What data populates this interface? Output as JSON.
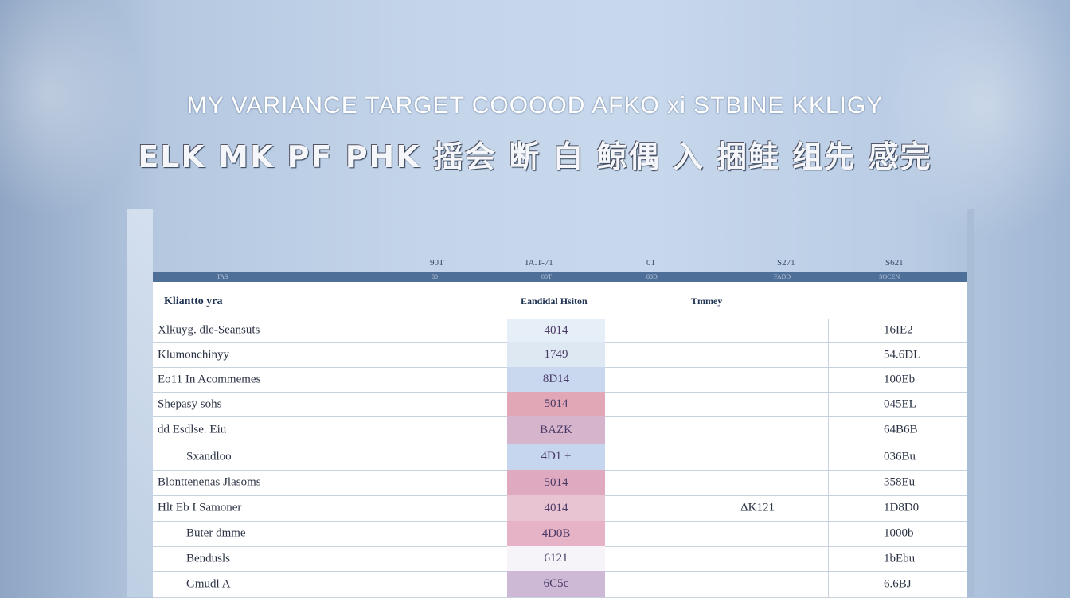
{
  "title": {
    "line1": "MY VARIANCE TARGET COOOOD AFKO xi STBINE KKLIGY",
    "line2": "ELK MK PF PHK 摇会 断 白 鲸偶 入 捆鲑 组先 感完"
  },
  "topbar": {
    "labels": [
      "90T",
      "IA.T-71",
      "01",
      "S271",
      "S621"
    ],
    "sub": [
      "TAS",
      "80",
      "80T",
      "80D",
      "FADD",
      "SOCEN"
    ]
  },
  "table": {
    "headers": [
      "Kliantto yra",
      "Eandidal Hsiton",
      "Tmmey"
    ],
    "rows": [
      {
        "label": "Xlkuyg. dle-Seansuts",
        "value": "4014",
        "mid": "",
        "right": "16IE2",
        "color": "#e6eff8",
        "indent": false
      },
      {
        "label": "Klumonchinyy",
        "value": "1749",
        "mid": "",
        "right": "54.6DL",
        "color": "#dde8f3",
        "indent": false
      },
      {
        "label": "Eo11 In Acommemes",
        "value": "8D14",
        "mid": "",
        "right": "100Eb",
        "color": "#c9d8ef",
        "indent": false
      },
      {
        "label": "Shepasy sohs",
        "value": "5014",
        "mid": "",
        "right": "045EL",
        "color": "#e2a7b6",
        "indent": false
      },
      {
        "label": "dd Esdlse. Eiu",
        "value": "BAZK",
        "mid": "",
        "right": "64B6B",
        "color": "#d5b4cc",
        "indent": false
      },
      {
        "label": "Sxandloo",
        "value": "4D1 +",
        "mid": "",
        "right": "036Bu",
        "color": "#c6d6ee",
        "indent": true
      },
      {
        "label": "Blonttenenas Jlasoms",
        "value": "5014",
        "mid": "",
        "right": "358Eu",
        "color": "#dfaac0",
        "indent": false
      },
      {
        "label": "Hlt Eb I Samoner",
        "value": "4014",
        "mid": "ΔK121",
        "right": "1D8D0",
        "color": "#e8c3d2",
        "indent": false
      },
      {
        "label": "Buter dmme",
        "value": "4D0B",
        "mid": "",
        "right": "1000b",
        "color": "#e6b3c6",
        "indent": true
      },
      {
        "label": "Bendusls",
        "value": "6121",
        "mid": "",
        "right": "1bEbu",
        "color": "#f6f4f8",
        "indent": true
      },
      {
        "label": "Gmudl A",
        "value": "6C5c",
        "mid": "",
        "right": "6.6BJ",
        "color": "#cdb8d6",
        "indent": true
      }
    ]
  }
}
